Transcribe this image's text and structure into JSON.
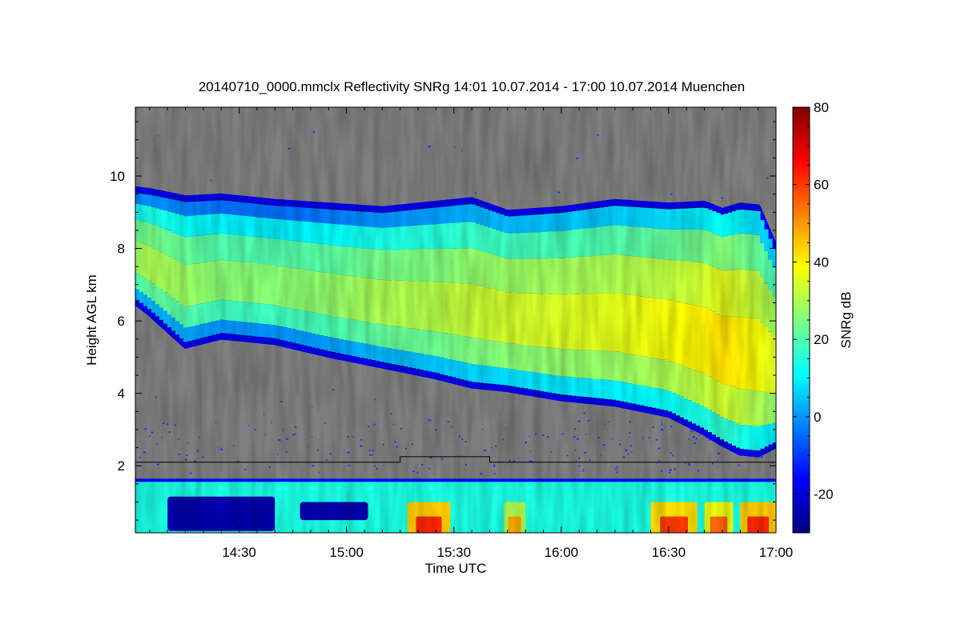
{
  "chart_data": {
    "type": "heatmap",
    "title": "20140710_0000.mmclx Reflectivity SNRg   14:01 10.07.2014 - 17:00 10.07.2014 Muenchen",
    "xlabel": "Time UTC",
    "ylabel": "Height AGL km",
    "x_ticks": [
      "14:30",
      "15:00",
      "15:30",
      "16:00",
      "16:30",
      "17:00"
    ],
    "x_tick_values_min": [
      870,
      900,
      930,
      960,
      990,
      1020
    ],
    "xlim_min": [
      841,
      1020
    ],
    "y_ticks": [
      "2",
      "4",
      "6",
      "8",
      "10"
    ],
    "y_tick_values": [
      2,
      4,
      6,
      8,
      10
    ],
    "ylim": [
      0.15,
      11.9
    ],
    "colorbar": {
      "label": "SNRg dB",
      "ticks": [
        "-20",
        "0",
        "20",
        "40",
        "60",
        "80"
      ],
      "tick_values": [
        -20,
        0,
        20,
        40,
        60,
        80
      ],
      "range": [
        -30,
        80
      ],
      "colormap": "jet"
    },
    "background_color": "#808080",
    "cloud_layer": {
      "time_min": [
        841,
        845,
        855,
        865,
        880,
        895,
        910,
        925,
        935,
        945,
        960,
        975,
        990,
        1000,
        1005,
        1010,
        1015,
        1020
      ],
      "top_km": [
        9.65,
        9.6,
        9.4,
        9.45,
        9.3,
        9.2,
        9.1,
        9.25,
        9.35,
        9.0,
        9.1,
        9.3,
        9.2,
        9.25,
        9.05,
        9.2,
        9.15,
        8.0
      ],
      "base_km": [
        6.5,
        6.2,
        5.3,
        5.55,
        5.4,
        5.05,
        4.75,
        4.45,
        4.2,
        4.1,
        3.85,
        3.7,
        3.4,
        2.9,
        2.6,
        2.35,
        2.3,
        2.55
      ],
      "core_snr_db": [
        28,
        30,
        28,
        26,
        26,
        27,
        30,
        31,
        33,
        34,
        35,
        36,
        38,
        40,
        42,
        40,
        38,
        35
      ],
      "top_snr_db": -22,
      "base_snr_db": -18
    },
    "boundary_layer": {
      "top_km": 1.6,
      "snr_db": 14,
      "strong_echoes": [
        {
          "time_min": [
            917,
            929
          ],
          "snr_db": 62
        },
        {
          "time_min": [
            944,
            950
          ],
          "snr_db": 48
        },
        {
          "time_min": [
            985,
            998
          ],
          "snr_db": 60
        },
        {
          "time_min": [
            1000,
            1008
          ],
          "snr_db": 55
        },
        {
          "time_min": [
            1010,
            1020
          ],
          "snr_db": 62
        }
      ],
      "weak_patches": [
        {
          "time_min": [
            850,
            880
          ],
          "height_km": [
            0.2,
            1.15
          ],
          "snr_db": -25
        },
        {
          "time_min": [
            887,
            906
          ],
          "height_km": [
            0.5,
            1.0
          ],
          "snr_db": -25
        }
      ]
    },
    "reference_line": {
      "height_km": 2.1,
      "step": {
        "time_min": [
          915,
          940
        ],
        "height_km": 2.25
      }
    }
  }
}
